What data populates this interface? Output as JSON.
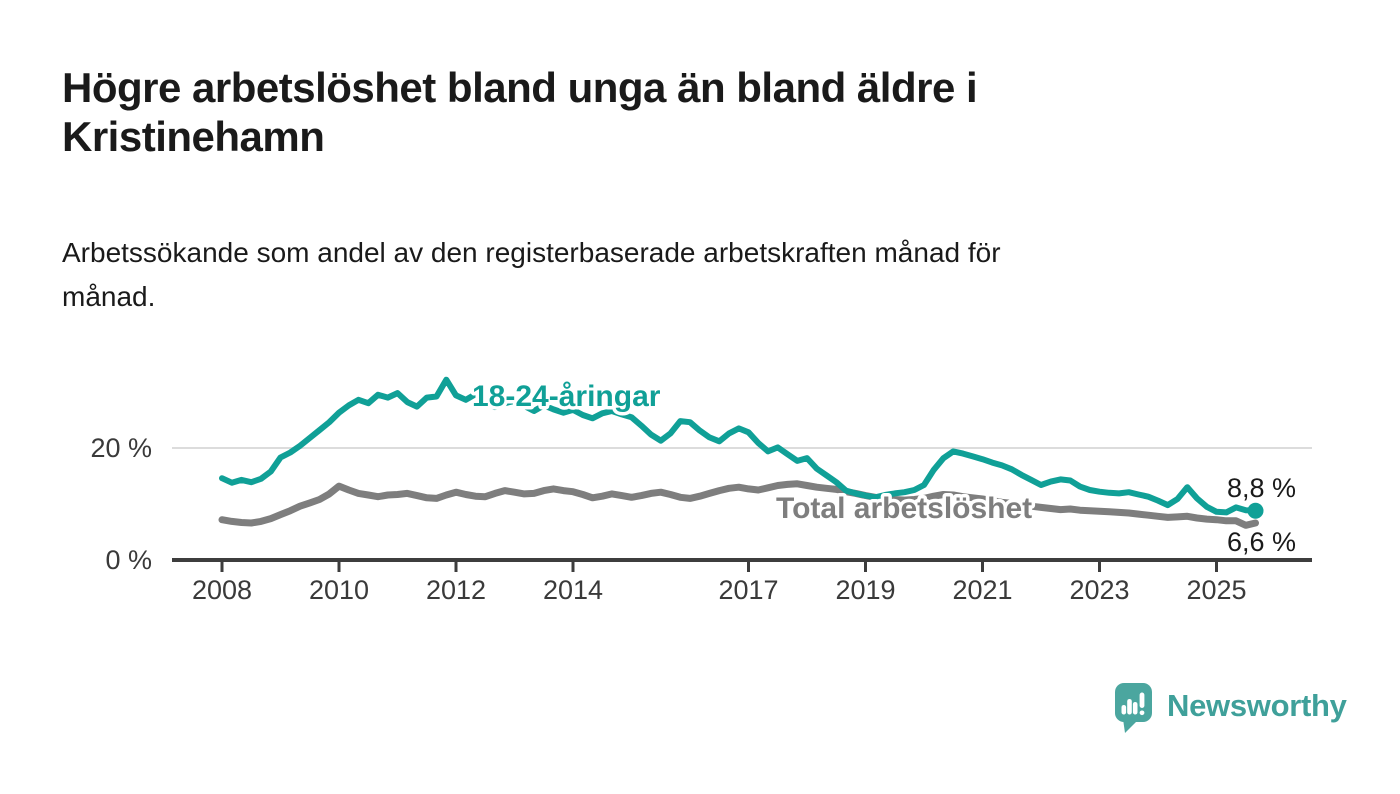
{
  "header": {
    "title_lines": [
      "Högre arbetslöshet bland unga än bland äldre i",
      "Kristinehamn"
    ],
    "subtitle_lines": [
      "Arbetssökande som andel av den registerbaserade arbetskraften månad för",
      "månad."
    ]
  },
  "colors": {
    "accent_teal": "#10a097",
    "series_gray": "#7e7e7e",
    "axis": "#3d3d3d",
    "gridline": "#dcdcdc",
    "text": "#1a1a1a",
    "brand_teal": "#3fa09a",
    "logo_bubble": "#4ba69f"
  },
  "chart_data": {
    "type": "line",
    "x_start": 2008.0,
    "x_step_years": 0.1666667,
    "x_ticks": [
      {
        "value": 2008,
        "label": "2008"
      },
      {
        "value": 2010,
        "label": "2010"
      },
      {
        "value": 2012,
        "label": "2012"
      },
      {
        "value": 2014,
        "label": "2014"
      },
      {
        "value": 2017,
        "label": "2017"
      },
      {
        "value": 2019,
        "label": "2019"
      },
      {
        "value": 2021,
        "label": "2021"
      },
      {
        "value": 2023,
        "label": "2023"
      },
      {
        "value": 2025,
        "label": "2025"
      }
    ],
    "y_ticks": [
      {
        "value": 0,
        "label": "0 %",
        "gridline": false
      },
      {
        "value": 20,
        "label": "20 %",
        "gridline": true
      }
    ],
    "ylim": [
      0,
      34
    ],
    "legend_position": "inline-labels",
    "series": [
      {
        "name": "18-24-åringar",
        "color": "#10a097",
        "end_label": "8,8 %",
        "end_value": 8.8,
        "values": [
          14.6,
          13.8,
          14.3,
          13.9,
          14.5,
          15.8,
          18.3,
          19.2,
          20.4,
          21.8,
          23.2,
          24.6,
          26.3,
          27.6,
          28.6,
          28.0,
          29.5,
          29.0,
          29.8,
          28.2,
          27.4,
          29.0,
          29.2,
          32.2,
          29.4,
          28.6,
          29.6,
          28.4,
          27.3,
          28.0,
          28.4,
          27.5,
          26.6,
          27.6,
          26.9,
          26.3,
          26.8,
          25.9,
          25.3,
          26.2,
          26.6,
          26.0,
          25.5,
          24.0,
          22.4,
          21.3,
          22.6,
          24.8,
          24.6,
          23.1,
          21.9,
          21.2,
          22.6,
          23.5,
          22.8,
          20.9,
          19.4,
          20.1,
          18.9,
          17.7,
          18.2,
          16.3,
          15.1,
          13.9,
          12.4,
          11.9,
          11.5,
          11.2,
          11.6,
          11.9,
          12.1,
          12.5,
          13.4,
          16.1,
          18.2,
          19.4,
          19.0,
          18.5,
          18.0,
          17.4,
          16.9,
          16.2,
          15.2,
          14.3,
          13.4,
          14.0,
          14.4,
          14.2,
          13.1,
          12.5,
          12.2,
          12.0,
          11.9,
          12.1,
          11.7,
          11.3,
          10.6,
          9.8,
          10.9,
          13.0,
          11.0,
          9.5,
          8.6,
          8.5,
          9.4,
          8.9,
          8.8
        ]
      },
      {
        "name": "Total arbetslöshet",
        "color": "#7e7e7e",
        "end_label": "6,6 %",
        "end_value": 6.6,
        "values": [
          7.2,
          6.9,
          6.7,
          6.6,
          6.9,
          7.4,
          8.1,
          8.8,
          9.6,
          10.2,
          10.8,
          11.8,
          13.2,
          12.5,
          11.9,
          11.6,
          11.3,
          11.6,
          11.7,
          11.9,
          11.5,
          11.1,
          11.0,
          11.6,
          12.1,
          11.7,
          11.4,
          11.3,
          11.9,
          12.4,
          12.1,
          11.8,
          11.9,
          12.4,
          12.7,
          12.4,
          12.2,
          11.7,
          11.1,
          11.4,
          11.8,
          11.5,
          11.2,
          11.5,
          11.9,
          12.1,
          11.7,
          11.2,
          11.0,
          11.4,
          11.9,
          12.4,
          12.8,
          13.0,
          12.7,
          12.5,
          12.9,
          13.3,
          13.5,
          13.6,
          13.3,
          13.0,
          12.8,
          12.6,
          12.2,
          11.9,
          11.5,
          11.2,
          11.0,
          10.8,
          10.7,
          10.8,
          11.0,
          11.4,
          11.7,
          11.6,
          11.3,
          11.1,
          10.9,
          10.6,
          10.3,
          10.1,
          9.8,
          9.6,
          9.4,
          9.2,
          9.0,
          9.1,
          8.9,
          8.8,
          8.7,
          8.6,
          8.5,
          8.4,
          8.2,
          8.0,
          7.8,
          7.6,
          7.7,
          7.8,
          7.5,
          7.3,
          7.2,
          7.0,
          7.0,
          6.2,
          6.6
        ]
      }
    ]
  },
  "footer": {
    "brand": "Newsworthy",
    "logo_icon": "speech-bubble-bar-chart-icon"
  }
}
